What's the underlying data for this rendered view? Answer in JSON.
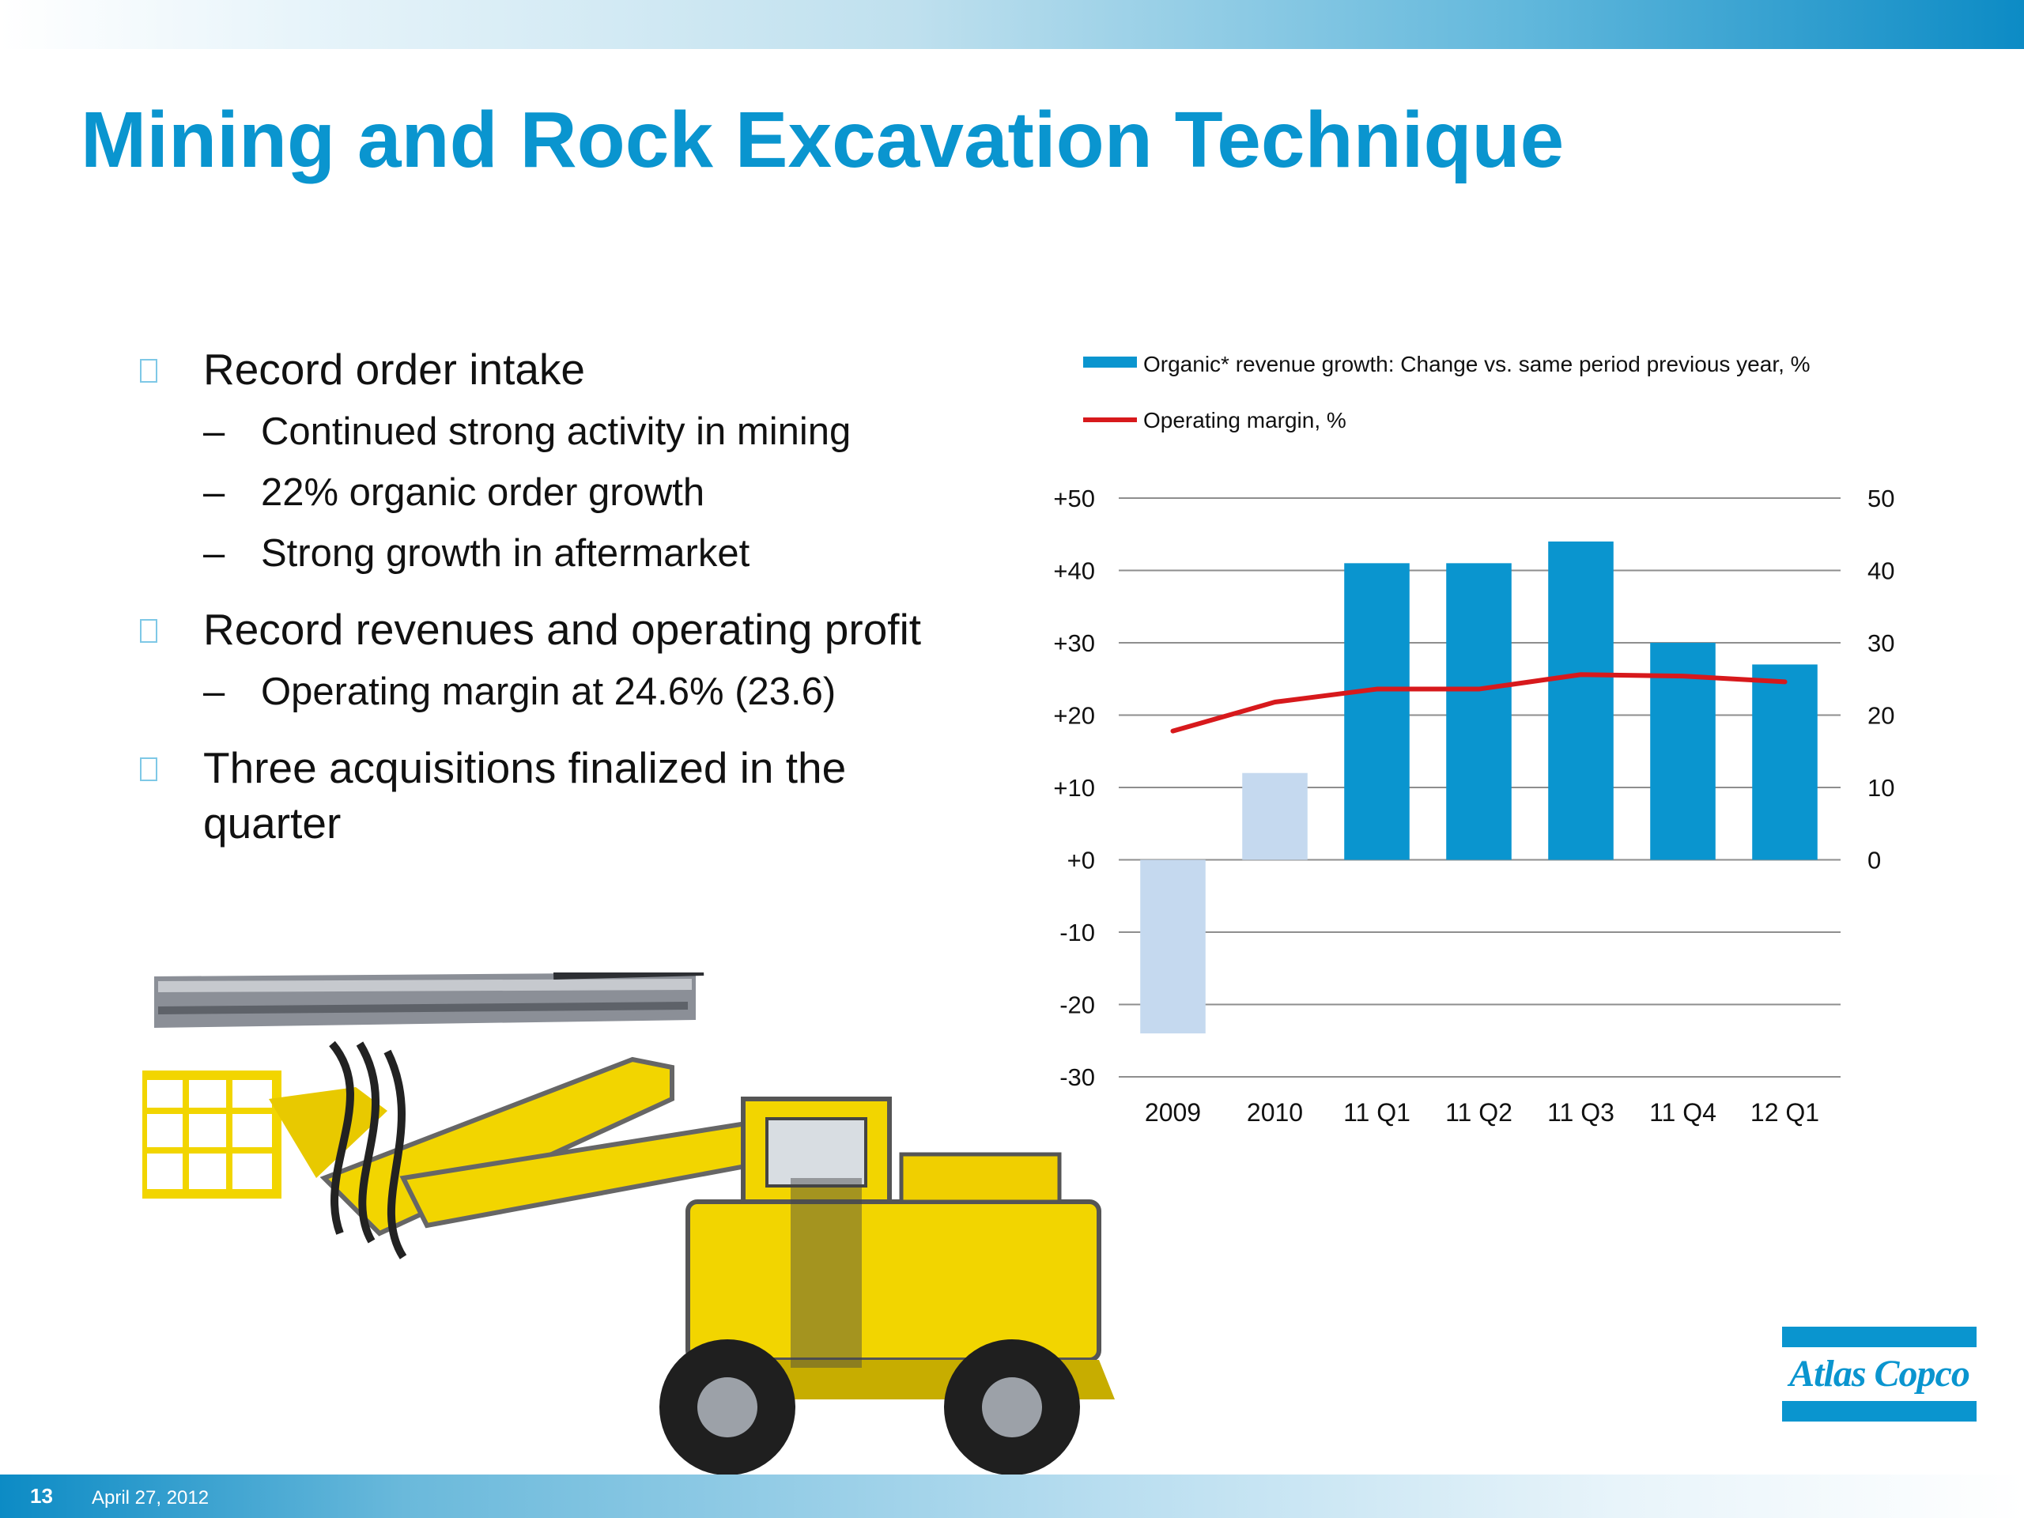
{
  "slide": {
    "title": "Mining and Rock Excavation Technique",
    "footer": {
      "page_number": "13",
      "date": "April 27, 2012"
    },
    "logo_text": "Atlas Copco",
    "accent_color": "#0a95cf"
  },
  "bullets": [
    {
      "text": "Record order intake",
      "sub": [
        "Continued strong activity in mining",
        "22% organic order growth",
        "Strong growth in aftermarket"
      ]
    },
    {
      "text": "Record revenues and operating profit",
      "sub": [
        "Operating margin at 24.6% (23.6)"
      ]
    },
    {
      "text": "Three acquisitions finalized in the quarter",
      "sub": []
    }
  ],
  "sub_bullet_marker": "–",
  "chart_data": {
    "type": "bar",
    "categories": [
      "2009",
      "2010",
      "11 Q1",
      "11 Q2",
      "11 Q3",
      "11 Q4",
      "12 Q1"
    ],
    "series": [
      {
        "name": "Organic* revenue growth: Change vs. same period previous year, %",
        "type": "bar",
        "axis": "left",
        "values": [
          -24,
          12,
          41,
          41,
          44,
          30,
          27
        ],
        "colors": [
          "#c5d9ef",
          "#c5d9ef",
          "#0a95cf",
          "#0a95cf",
          "#0a95cf",
          "#0a95cf",
          "#0a95cf"
        ]
      },
      {
        "name": "Operating margin, %",
        "type": "line",
        "axis": "right",
        "values": [
          17.8,
          21.8,
          23.6,
          23.6,
          25.6,
          25.4,
          24.6
        ],
        "color": "#d7191c"
      }
    ],
    "left_axis": {
      "ylim": [
        -30,
        50
      ],
      "ticks": [
        "+50",
        "+40",
        "+30",
        "+20",
        "+10",
        "+0",
        "-10",
        "-20",
        "-30"
      ]
    },
    "right_axis": {
      "ylim": [
        -30,
        50
      ],
      "ticks": [
        "50",
        "40",
        "30",
        "20",
        "10",
        "0"
      ]
    },
    "legend_position": "top",
    "grid": true
  }
}
